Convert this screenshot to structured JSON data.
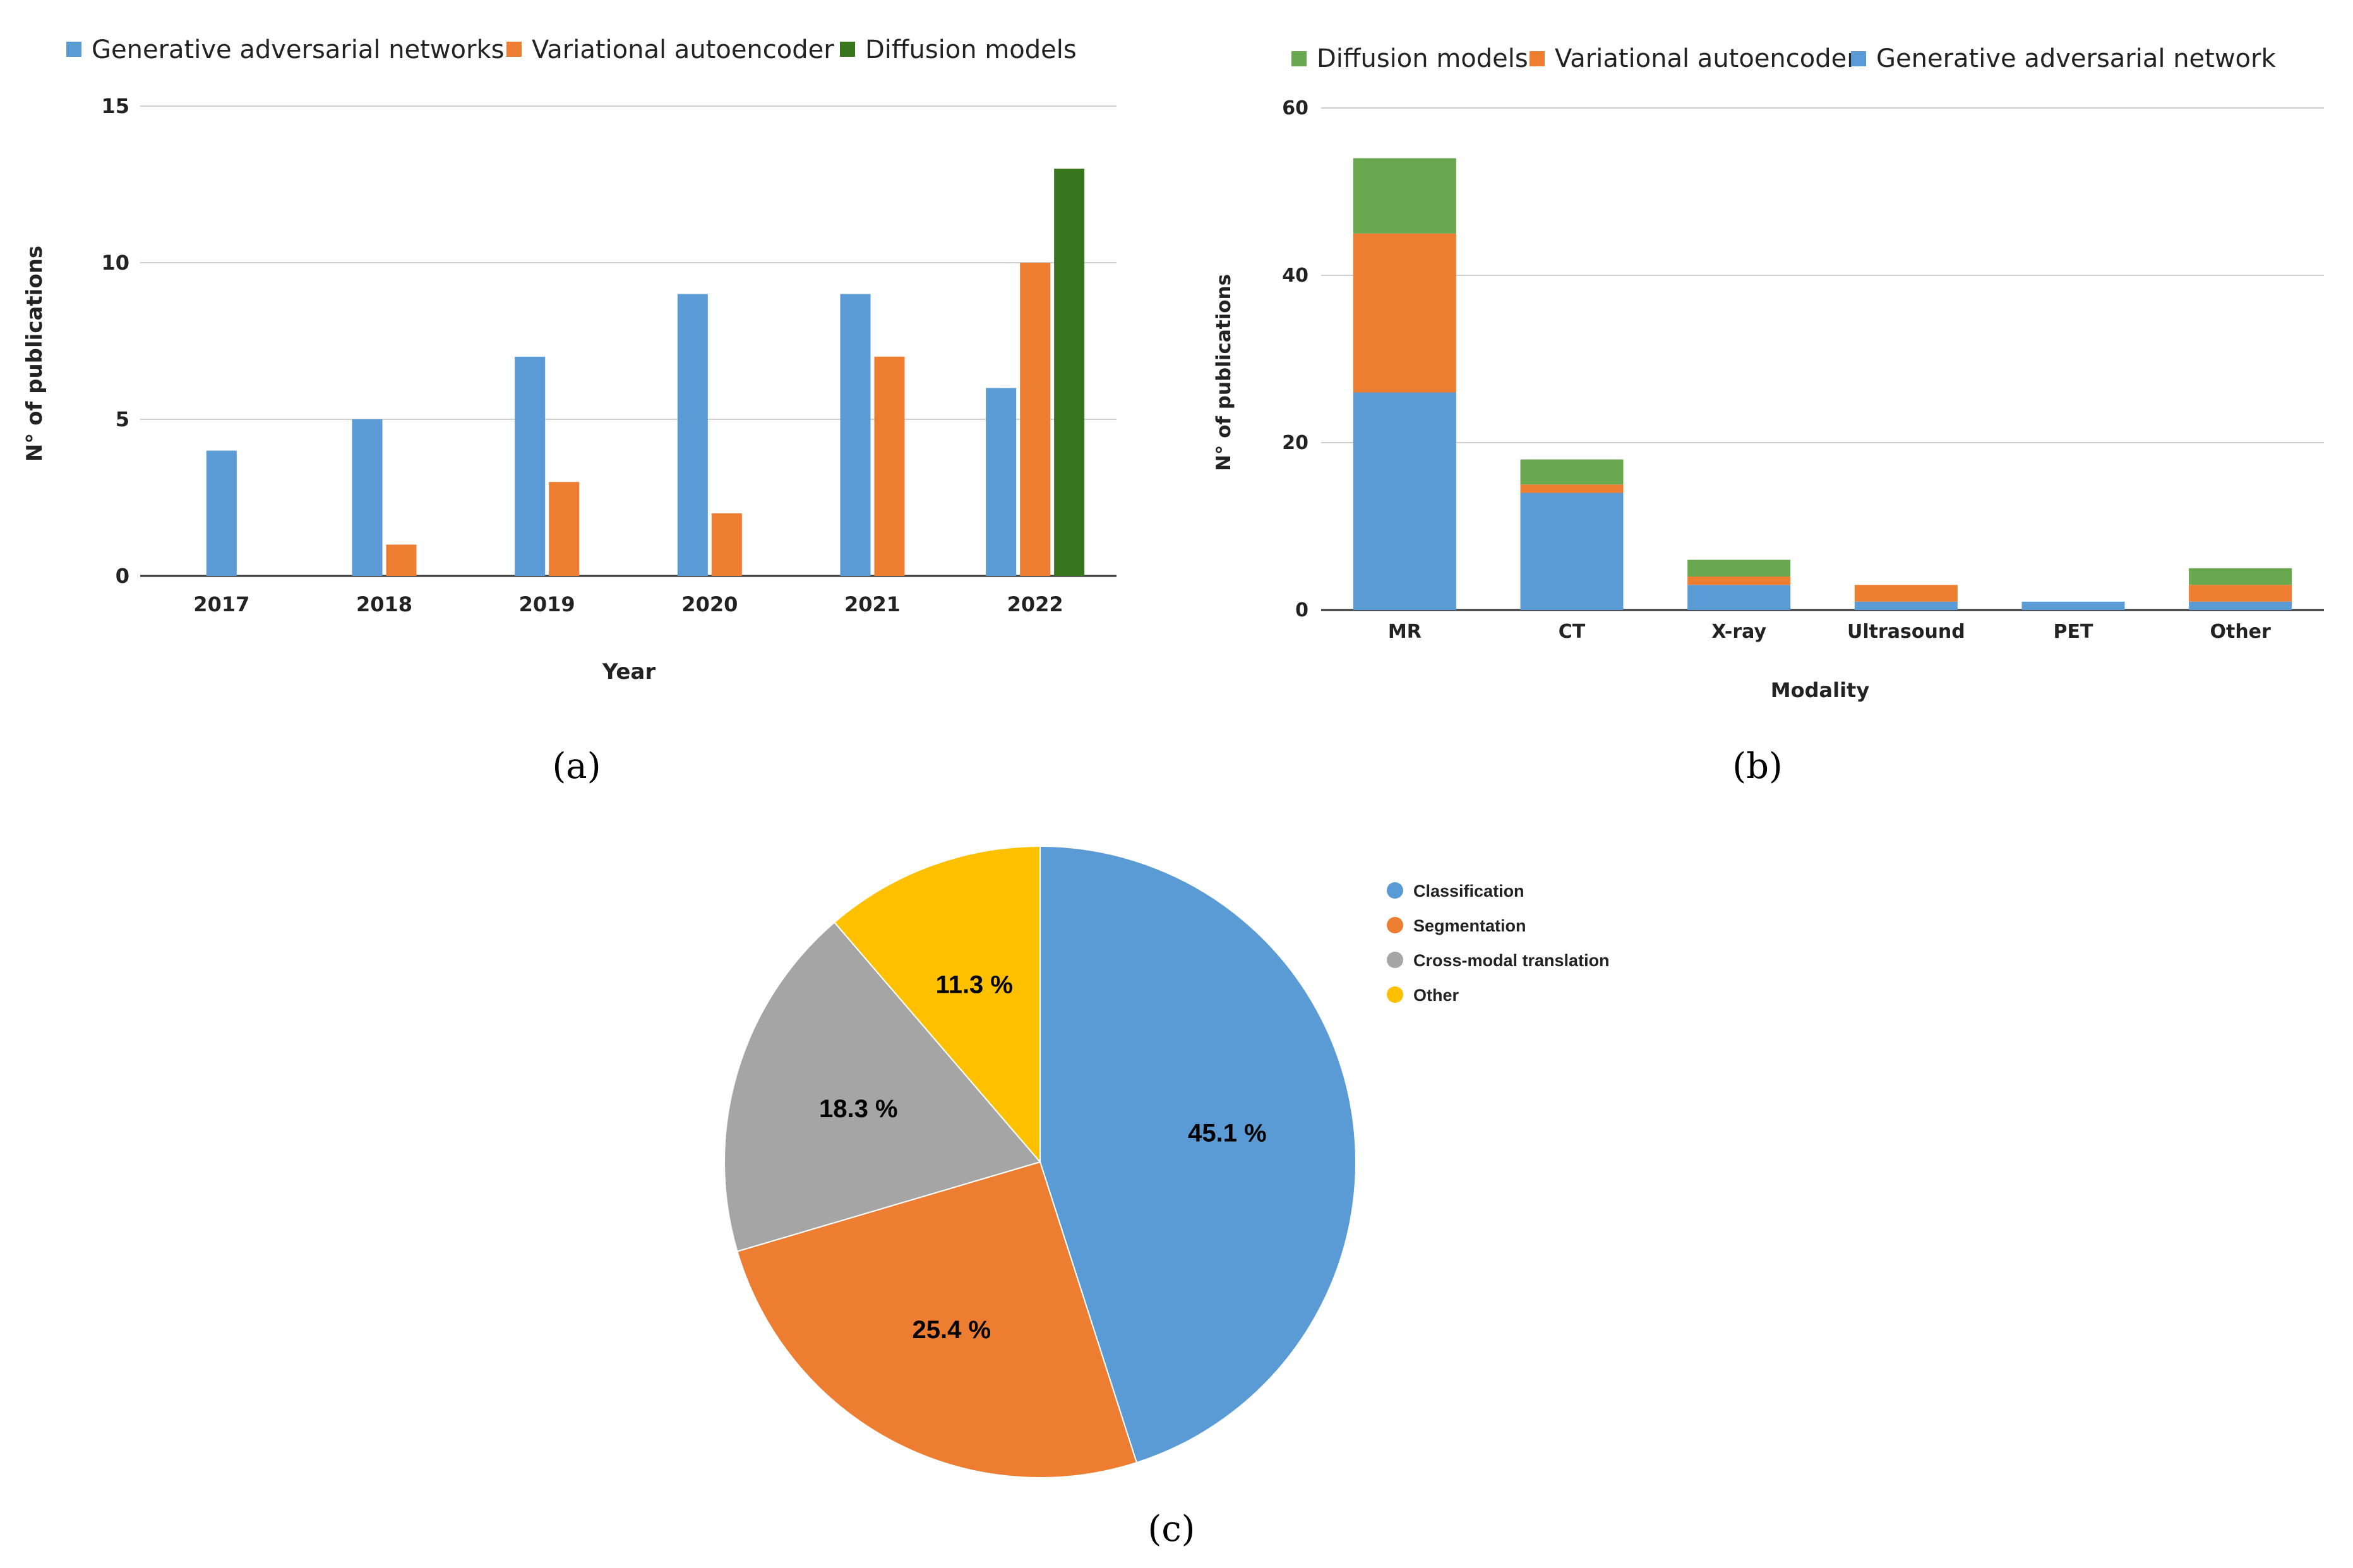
{
  "chart_data": [
    {
      "id": "a",
      "type": "bar",
      "caption": "(a)",
      "xlabel": "Year",
      "ylabel": "N° of publications",
      "ylim": [
        0,
        15
      ],
      "yticks": [
        "0",
        "5",
        "10",
        "15"
      ],
      "categories": [
        "2017",
        "2018",
        "2019",
        "2020",
        "2021",
        "2022"
      ],
      "legend_position": "top-left",
      "series": [
        {
          "name": "Generative adversarial networks",
          "color": "#5b9bd5",
          "values": [
            4,
            5,
            7,
            9,
            9,
            6
          ]
        },
        {
          "name": "Variational autoencoder",
          "color": "#ed7d31",
          "values": [
            0,
            1,
            3,
            2,
            7,
            10
          ]
        },
        {
          "name": "Diffusion models",
          "color": "#38761d",
          "values": [
            0,
            0,
            0,
            0,
            0,
            13
          ]
        }
      ]
    },
    {
      "id": "b",
      "type": "bar",
      "stacked": true,
      "caption": "(b)",
      "xlabel": "Modality",
      "ylabel": "N° of publications",
      "ylim": [
        0,
        60
      ],
      "yticks": [
        "0",
        "20",
        "40",
        "60"
      ],
      "categories": [
        "MR",
        "CT",
        "X-ray",
        "Ultrasound",
        "PET",
        "Other"
      ],
      "legend_position": "top-left",
      "legend": [
        {
          "name": "Diffusion models",
          "color": "#6aa84f"
        },
        {
          "name": "Variational autoencoder",
          "color": "#ed7d31"
        },
        {
          "name": "Generative adversarial network",
          "color": "#5b9bd5"
        }
      ],
      "series": [
        {
          "name": "Generative adversarial network",
          "color": "#5b9bd5",
          "values": [
            26,
            14,
            3,
            1,
            1,
            1
          ]
        },
        {
          "name": "Variational autoencoder",
          "color": "#ed7d31",
          "values": [
            19,
            1,
            1,
            2,
            0,
            2
          ]
        },
        {
          "name": "Diffusion models",
          "color": "#6aa84f",
          "values": [
            9,
            3,
            2,
            0,
            0,
            2
          ]
        }
      ]
    },
    {
      "id": "c",
      "type": "pie",
      "caption": "(c)",
      "legend_position": "right",
      "slices": [
        {
          "name": "Classification",
          "value": 45.1,
          "label": "45.1 %",
          "color": "#5b9bd5"
        },
        {
          "name": "Segmentation",
          "value": 25.4,
          "label": "25.4 %",
          "color": "#ed7d31"
        },
        {
          "name": "Cross-modal translation",
          "value": 18.3,
          "label": "18.3 %",
          "color": "#a5a5a5"
        },
        {
          "name": "Other",
          "value": 11.3,
          "label": "11.3 %",
          "color": "#ffc000"
        }
      ]
    }
  ]
}
